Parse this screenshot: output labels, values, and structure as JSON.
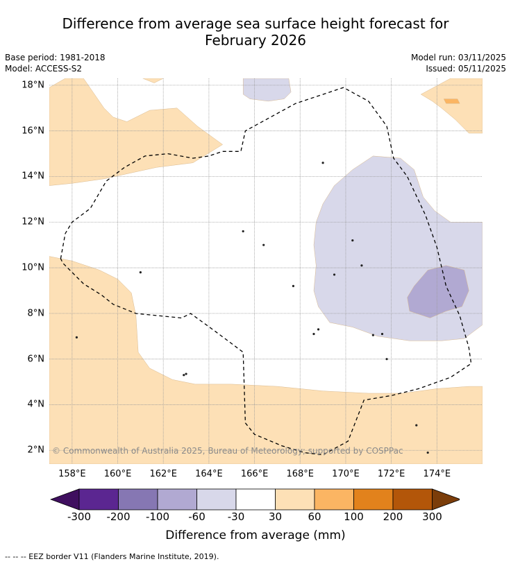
{
  "title": {
    "line1": "Difference from average sea surface height forecast for",
    "line2": "February 2026"
  },
  "meta": {
    "base_period": "Base period: 1981-2018",
    "model": "Model: ACCESS-S2",
    "model_run": "Model run: 03/11/2025",
    "issued": "Issued: 05/11/2025"
  },
  "map": {
    "copyright": "© Commonwealth of Australia 2025, Bureau of Meteorology; supported by COSPPac",
    "lat_range": [
      1.4,
      18.3
    ],
    "lon_range": [
      157.0,
      176.0
    ],
    "lat_ticks": [
      {
        "value": 2,
        "label": "2°N"
      },
      {
        "value": 4,
        "label": "4°N"
      },
      {
        "value": 6,
        "label": "6°N"
      },
      {
        "value": 8,
        "label": "8°N"
      },
      {
        "value": 10,
        "label": "10°N"
      },
      {
        "value": 12,
        "label": "12°N"
      },
      {
        "value": 14,
        "label": "14°N"
      },
      {
        "value": 16,
        "label": "16°N"
      },
      {
        "value": 18,
        "label": "18°N"
      }
    ],
    "lon_ticks": [
      {
        "value": 158,
        "label": "158°E"
      },
      {
        "value": 160,
        "label": "160°E"
      },
      {
        "value": 162,
        "label": "162°E"
      },
      {
        "value": 164,
        "label": "164°E"
      },
      {
        "value": 166,
        "label": "166°E"
      },
      {
        "value": 168,
        "label": "168°E"
      },
      {
        "value": 170,
        "label": "170°E"
      },
      {
        "value": 172,
        "label": "172°E"
      },
      {
        "value": 174,
        "label": "174°E"
      }
    ],
    "eez_border": [
      [
        157.5,
        10.4
      ],
      [
        157.7,
        11.5
      ],
      [
        158.0,
        12.0
      ],
      [
        158.8,
        12.6
      ],
      [
        159.5,
        13.8
      ],
      [
        160.3,
        14.4
      ],
      [
        161.2,
        14.9
      ],
      [
        162.2,
        15.0
      ],
      [
        163.3,
        14.8
      ],
      [
        164.0,
        14.9
      ],
      [
        164.6,
        15.1
      ],
      [
        165.4,
        15.1
      ],
      [
        165.6,
        16.0
      ],
      [
        167.8,
        17.2
      ],
      [
        169.9,
        17.9
      ],
      [
        171.0,
        17.3
      ],
      [
        171.8,
        16.2
      ],
      [
        172.1,
        14.8
      ],
      [
        172.7,
        14.0
      ],
      [
        173.5,
        12.3
      ],
      [
        174.0,
        10.9
      ],
      [
        174.4,
        9.2
      ],
      [
        175.0,
        7.9
      ],
      [
        175.4,
        6.5
      ],
      [
        175.5,
        5.8
      ],
      [
        174.6,
        5.2
      ],
      [
        173.2,
        4.7
      ],
      [
        172.0,
        4.4
      ],
      [
        170.8,
        4.2
      ],
      [
        170.1,
        2.4
      ],
      [
        169.0,
        1.8
      ],
      [
        168.2,
        1.9
      ],
      [
        167.2,
        2.2
      ],
      [
        166.0,
        2.7
      ],
      [
        165.6,
        3.2
      ],
      [
        165.5,
        6.3
      ],
      [
        164.3,
        7.2
      ],
      [
        163.2,
        8.0
      ],
      [
        162.8,
        7.8
      ],
      [
        161.8,
        7.9
      ],
      [
        160.8,
        8.0
      ],
      [
        159.8,
        8.4
      ],
      [
        159.3,
        8.8
      ],
      [
        158.5,
        9.3
      ],
      [
        157.6,
        10.2
      ]
    ],
    "regions": [
      {
        "category": "30 to 60",
        "color": "#fde0b6",
        "points": [
          [
            157.0,
            17.9
          ],
          [
            157.7,
            18.3
          ],
          [
            158.5,
            18.3
          ],
          [
            159.4,
            17.0
          ],
          [
            159.8,
            16.6
          ],
          [
            160.4,
            16.4
          ],
          [
            161.4,
            16.9
          ],
          [
            162.6,
            17.0
          ],
          [
            163.5,
            16.2
          ],
          [
            164.6,
            15.4
          ],
          [
            163.3,
            14.6
          ],
          [
            161.7,
            14.4
          ],
          [
            159.4,
            13.9
          ],
          [
            158.0,
            13.7
          ],
          [
            157.0,
            13.6
          ]
        ]
      },
      {
        "category": "30 to 60",
        "color": "#fde0b6",
        "points": [
          [
            161.1,
            18.3
          ],
          [
            162.0,
            18.3
          ],
          [
            161.6,
            18.1
          ]
        ]
      },
      {
        "category": "30 to 60",
        "color": "#fde0b6",
        "points": [
          [
            173.3,
            17.6
          ],
          [
            174.6,
            18.3
          ],
          [
            176.0,
            18.3
          ],
          [
            176.0,
            15.9
          ],
          [
            175.4,
            15.9
          ],
          [
            174.8,
            16.5
          ],
          [
            174.2,
            17.0
          ],
          [
            173.8,
            17.3
          ]
        ]
      },
      {
        "category": "60 to 100",
        "color": "#fbb563",
        "points": [
          [
            174.3,
            17.4
          ],
          [
            174.9,
            17.4
          ],
          [
            175.0,
            17.2
          ],
          [
            174.4,
            17.2
          ]
        ]
      },
      {
        "category": "30 to 60",
        "color": "#fde0b6",
        "points": [
          [
            157.0,
            10.5
          ],
          [
            158.0,
            10.3
          ],
          [
            159.2,
            9.9
          ],
          [
            160.0,
            9.5
          ],
          [
            160.6,
            8.9
          ],
          [
            160.8,
            7.9
          ],
          [
            160.9,
            6.3
          ],
          [
            161.4,
            5.6
          ],
          [
            162.4,
            5.1
          ],
          [
            163.4,
            4.9
          ],
          [
            165.0,
            4.9
          ],
          [
            167.0,
            4.8
          ],
          [
            169.0,
            4.6
          ],
          [
            171.0,
            4.5
          ],
          [
            172.5,
            4.5
          ],
          [
            174.0,
            4.7
          ],
          [
            175.4,
            4.8
          ],
          [
            176.0,
            4.8
          ],
          [
            176.0,
            1.4
          ],
          [
            157.0,
            1.4
          ]
        ]
      },
      {
        "category": "-60 to -30",
        "color": "#d8d8ea",
        "points": [
          [
            165.5,
            18.3
          ],
          [
            167.5,
            18.3
          ],
          [
            167.6,
            17.7
          ],
          [
            167.3,
            17.4
          ],
          [
            166.6,
            17.3
          ],
          [
            165.8,
            17.4
          ],
          [
            165.5,
            17.6
          ]
        ]
      },
      {
        "category": "-60 to -30",
        "color": "#d8d8ea",
        "points": [
          [
            169.0,
            12.8
          ],
          [
            169.5,
            13.6
          ],
          [
            170.3,
            14.3
          ],
          [
            171.2,
            14.9
          ],
          [
            172.4,
            14.8
          ],
          [
            173.0,
            14.3
          ],
          [
            173.4,
            13.1
          ],
          [
            173.9,
            12.5
          ],
          [
            174.6,
            12.0
          ],
          [
            176.0,
            12.0
          ],
          [
            176.0,
            7.5
          ],
          [
            175.2,
            6.9
          ],
          [
            174.2,
            6.8
          ],
          [
            172.8,
            6.8
          ],
          [
            171.4,
            7.0
          ],
          [
            170.3,
            7.4
          ],
          [
            169.3,
            7.6
          ],
          [
            168.8,
            8.3
          ],
          [
            168.6,
            9.0
          ],
          [
            168.7,
            10.1
          ],
          [
            168.6,
            11.0
          ],
          [
            168.7,
            12.0
          ]
        ]
      },
      {
        "category": "-100 to -60",
        "color": "#b1a9d2",
        "points": [
          [
            173.0,
            9.2
          ],
          [
            173.6,
            9.9
          ],
          [
            174.4,
            10.1
          ],
          [
            175.2,
            9.9
          ],
          [
            175.4,
            9.0
          ],
          [
            175.1,
            8.3
          ],
          [
            174.4,
            8.1
          ],
          [
            173.7,
            7.8
          ],
          [
            172.8,
            8.1
          ],
          [
            172.7,
            8.7
          ]
        ]
      }
    ],
    "islands": [
      [
        158.2,
        6.95
      ],
      [
        162.9,
        5.3
      ],
      [
        163.0,
        5.35
      ],
      [
        161.0,
        9.8
      ],
      [
        165.5,
        11.6
      ],
      [
        166.4,
        11.0
      ],
      [
        167.7,
        9.2
      ],
      [
        168.6,
        7.1
      ],
      [
        168.8,
        7.3
      ],
      [
        169.5,
        9.7
      ],
      [
        170.7,
        10.1
      ],
      [
        171.2,
        7.05
      ],
      [
        171.6,
        7.1
      ],
      [
        173.1,
        3.1
      ],
      [
        173.6,
        1.9
      ],
      [
        170.3,
        11.2
      ],
      [
        169.0,
        14.6
      ],
      [
        171.8,
        6.0
      ]
    ]
  },
  "colorbar": {
    "title": "Difference from average (mm)",
    "low_extend_color": "#3f0f5f",
    "high_extend_color": "#7b3d0a",
    "bins": [
      {
        "range": "-300 to -200",
        "color": "#5b2691"
      },
      {
        "range": "-200 to -100",
        "color": "#8677b3"
      },
      {
        "range": "-100 to -60",
        "color": "#b1a9d2"
      },
      {
        "range": "-60 to -30",
        "color": "#d8d8ea"
      },
      {
        "range": "-30 to 30",
        "color": "#ffffff"
      },
      {
        "range": "30 to 60",
        "color": "#fde0b6"
      },
      {
        "range": "60 to 100",
        "color": "#fbb563"
      },
      {
        "range": "100 to 200",
        "color": "#e2821c"
      },
      {
        "range": "200 to 300",
        "color": "#b35609"
      }
    ],
    "tick_labels": [
      "-300",
      "-200",
      "-100",
      "-60",
      "-30",
      "30",
      "60",
      "100",
      "200",
      "300"
    ]
  },
  "footnote": "--  --  -- EEZ border V11 (Flanders Marine Institute, 2019)."
}
